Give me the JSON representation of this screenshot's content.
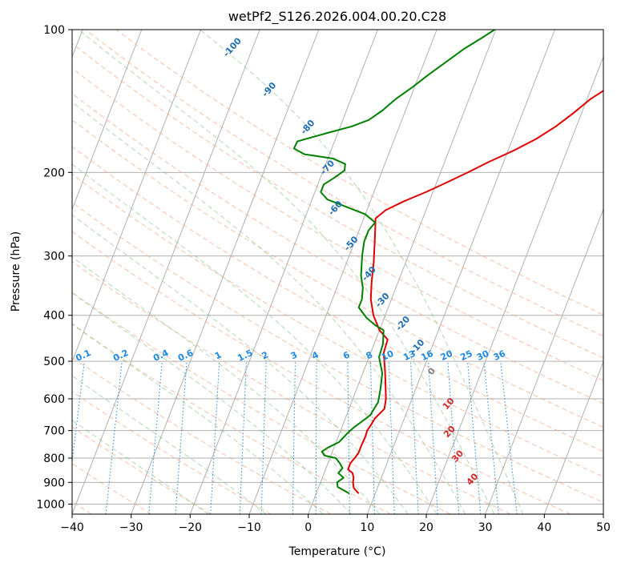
{
  "chart_data": {
    "type": "line",
    "title": "wetPf2_S126.2026.004.00.20.C28",
    "xlabel": "Temperature (°C)",
    "ylabel": "Pressure (hPa)",
    "xlim": [
      -40,
      50
    ],
    "ylim": [
      1050,
      100
    ],
    "y_scale": "log",
    "x_ticks": [
      -40,
      -30,
      -20,
      -10,
      0,
      10,
      20,
      30,
      40,
      50
    ],
    "x_tick_labels": [
      "−40",
      "−30",
      "−20",
      "−10",
      "0",
      "10",
      "20",
      "30",
      "40",
      "50"
    ],
    "y_ticks": [
      100,
      200,
      300,
      400,
      500,
      600,
      700,
      800,
      900,
      1000
    ],
    "y_tick_labels": [
      "100",
      "200",
      "300",
      "400",
      "500",
      "600",
      "700",
      "800",
      "900",
      "1000"
    ],
    "grid": true,
    "isotherm_color": "#b0b0b0",
    "dry_adiabat_color": "#f4a582",
    "moist_adiabat_color": "#7fbf7f",
    "mixing_ratio_color": "#1e88e5",
    "series": [
      {
        "color": "#e00000",
        "points": [
          [
            7.2,
            950
          ],
          [
            6.0,
            925
          ],
          [
            5.5,
            900
          ],
          [
            5.3,
            880
          ],
          [
            4.8,
            860
          ],
          [
            3.8,
            845
          ],
          [
            3.8,
            820
          ],
          [
            4.2,
            800
          ],
          [
            4.5,
            780
          ],
          [
            4.5,
            750
          ],
          [
            4.6,
            720
          ],
          [
            4.5,
            700
          ],
          [
            4.8,
            680
          ],
          [
            5.0,
            660
          ],
          [
            6.0,
            630
          ],
          [
            5.6,
            600
          ],
          [
            4.6,
            560
          ],
          [
            3.5,
            520
          ],
          [
            2.2,
            480
          ],
          [
            2.0,
            450
          ],
          [
            0.0,
            430
          ],
          [
            -2.0,
            400
          ],
          [
            -3.5,
            370
          ],
          [
            -4.5,
            340
          ],
          [
            -5.4,
            310
          ],
          [
            -6.6,
            280
          ],
          [
            -7.5,
            260
          ],
          [
            -8.0,
            250
          ],
          [
            -6.8,
            240
          ],
          [
            -4.3,
            230
          ],
          [
            -1.2,
            220
          ],
          [
            1.7,
            210
          ],
          [
            4.6,
            200
          ],
          [
            7.5,
            190
          ],
          [
            10.9,
            180
          ],
          [
            14.0,
            170
          ],
          [
            16.5,
            160
          ],
          [
            18.6,
            150
          ],
          [
            20.6,
            140
          ],
          [
            23.6,
            130
          ],
          [
            26.3,
            120
          ],
          [
            28.4,
            110
          ],
          [
            30.8,
            103
          ],
          [
            32.3,
            100
          ]
        ]
      },
      {
        "color": "#008000",
        "points": [
          [
            5.6,
            950
          ],
          [
            3.2,
            920
          ],
          [
            2.8,
            900
          ],
          [
            3.6,
            880
          ],
          [
            2.4,
            860
          ],
          [
            2.8,
            840
          ],
          [
            2.0,
            820
          ],
          [
            1.0,
            800
          ],
          [
            -1.1,
            790
          ],
          [
            -1.8,
            775
          ],
          [
            -1.0,
            760
          ],
          [
            0.5,
            740
          ],
          [
            1.3,
            710
          ],
          [
            2.0,
            690
          ],
          [
            3.0,
            670
          ],
          [
            4.0,
            650
          ],
          [
            4.5,
            610
          ],
          [
            4.0,
            570
          ],
          [
            3.3,
            530
          ],
          [
            1.7,
            490
          ],
          [
            1.5,
            460
          ],
          [
            0.7,
            430
          ],
          [
            -1.0,
            420
          ],
          [
            -3.0,
            405
          ],
          [
            -5.0,
            385
          ],
          [
            -5.0,
            370
          ],
          [
            -5.6,
            350
          ],
          [
            -6.7,
            330
          ],
          [
            -7.8,
            300
          ],
          [
            -8.4,
            280
          ],
          [
            -8.4,
            265
          ],
          [
            -7.8,
            255
          ],
          [
            -10.0,
            245
          ],
          [
            -14.3,
            235
          ],
          [
            -17.4,
            228
          ],
          [
            -19.0,
            220
          ],
          [
            -19.0,
            212
          ],
          [
            -17.6,
            205
          ],
          [
            -16.4,
            198
          ],
          [
            -16.7,
            192
          ],
          [
            -19.1,
            187
          ],
          [
            -24.3,
            183
          ],
          [
            -26.4,
            178
          ],
          [
            -26.3,
            172
          ],
          [
            -21.7,
            165
          ],
          [
            -18.1,
            160
          ],
          [
            -15.6,
            155
          ],
          [
            -13.9,
            148
          ],
          [
            -12.4,
            140
          ],
          [
            -10.3,
            132
          ],
          [
            -8.6,
            125
          ],
          [
            -6.6,
            118
          ],
          [
            -4.2,
            110
          ],
          [
            -1.8,
            104
          ],
          [
            -0.2,
            100
          ]
        ]
      }
    ],
    "dry_adiabat_labels": [
      "-100",
      "-90",
      "-80",
      "-70",
      "-60",
      "-50",
      "-40",
      "-30",
      "-20",
      "-10",
      "0",
      "10",
      "20",
      "30",
      "40"
    ],
    "mixing_ratio_labels": [
      "0.1",
      "0.2",
      "0.4",
      "0.6",
      "1",
      "1.5",
      "2",
      "3",
      "4",
      "6",
      "8",
      "10",
      "13",
      "16",
      "20",
      "25",
      "30",
      "36"
    ]
  }
}
